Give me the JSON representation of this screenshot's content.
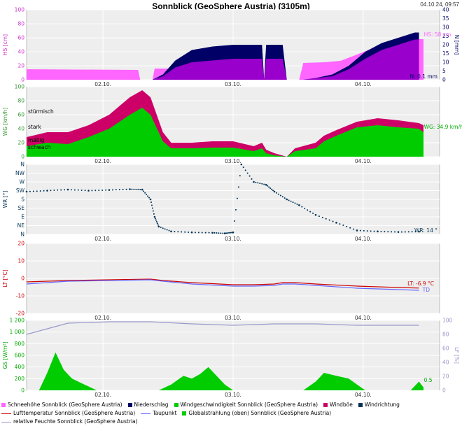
{
  "header": {
    "title": "Sonnblick (GeoSphere Austria) (3105m)",
    "timestamp": "04.10.24, 09:57"
  },
  "colors": {
    "snow": "#ff66ff",
    "precip": "#000066",
    "precip_fill": "#9900cc",
    "wind": "#00cc00",
    "gust": "#cc0066",
    "winddir": "#003355",
    "temp": "#cc0000",
    "dew": "#6666ff",
    "radiation": "#00cc00",
    "humidity": "#9999cc",
    "panel_bg": "#eeeeee",
    "grid": "#ffffff"
  },
  "x_axis": {
    "ticks": [
      {
        "label": "02.10.",
        "pos": 0.185
      },
      {
        "label": "03.10.",
        "pos": 0.5
      },
      {
        "label": "04.10.",
        "pos": 0.815
      }
    ]
  },
  "chart_data": [
    {
      "type": "area",
      "id": "snow",
      "ylabel": "HS [cm]",
      "ylabel_right": "N [mm]",
      "ylim": [
        0,
        100
      ],
      "ylim_right": [
        0,
        40
      ],
      "yticks": [
        "0",
        "20",
        "40",
        "60",
        "80",
        "100"
      ],
      "yticks_right": [
        "0",
        "5",
        "10",
        "15",
        "20",
        "25",
        "30",
        "35",
        "40"
      ],
      "series": [
        {
          "name": "Schneehöhe Sonnblick (GeoSphere Austria)",
          "kind": "snow",
          "points": [
            [
              0,
              15
            ],
            [
              0.27,
              14
            ],
            [
              0.275,
              0
            ],
            [
              0.305,
              0
            ],
            [
              0.31,
              16
            ],
            [
              0.57,
              16
            ],
            [
              0.575,
              0
            ],
            [
              0.58,
              16
            ],
            [
              0.62,
              17
            ],
            [
              0.63,
              0
            ],
            [
              0.66,
              0
            ],
            [
              0.67,
              24
            ],
            [
              0.72,
              25
            ],
            [
              0.76,
              27
            ],
            [
              0.8,
              36
            ],
            [
              0.85,
              48
            ],
            [
              0.9,
              57
            ],
            [
              0.95,
              58
            ],
            [
              0.961,
              58
            ]
          ]
        },
        {
          "name": "Niederschlag",
          "kind": "precip",
          "points": [
            [
              0.305,
              0
            ],
            [
              0.33,
              3
            ],
            [
              0.36,
              11
            ],
            [
              0.4,
              17
            ],
            [
              0.45,
              19
            ],
            [
              0.5,
              20
            ],
            [
              0.57,
              20
            ],
            [
              0.575,
              0
            ],
            [
              0.58,
              20
            ],
            [
              0.62,
              20
            ],
            [
              0.63,
              0
            ],
            [
              0.67,
              0
            ],
            [
              0.7,
              1
            ],
            [
              0.74,
              3
            ],
            [
              0.78,
              8
            ],
            [
              0.82,
              16
            ],
            [
              0.86,
              21
            ],
            [
              0.9,
              24
            ],
            [
              0.94,
              27
            ],
            [
              0.95,
              27
            ]
          ],
          "fill_points": [
            [
              0.305,
              0
            ],
            [
              0.33,
              2
            ],
            [
              0.36,
              7
            ],
            [
              0.4,
              10
            ],
            [
              0.45,
              11
            ],
            [
              0.5,
              12
            ],
            [
              0.57,
              12
            ],
            [
              0.575,
              0
            ],
            [
              0.58,
              12
            ],
            [
              0.62,
              12
            ],
            [
              0.63,
              0
            ],
            [
              0.67,
              0
            ],
            [
              0.7,
              1
            ],
            [
              0.74,
              2
            ],
            [
              0.78,
              6
            ],
            [
              0.82,
              12
            ],
            [
              0.86,
              17
            ],
            [
              0.9,
              20
            ],
            [
              0.94,
              23
            ],
            [
              0.95,
              23
            ]
          ]
        }
      ],
      "annotations": [
        "HS: 58 cm",
        "N: 0.1 mm"
      ]
    },
    {
      "type": "area",
      "id": "wind",
      "ylabel": "WG [km/h]",
      "ylim": [
        0,
        100
      ],
      "yticks": [
        "0",
        "20",
        "40",
        "60",
        "80",
        "100"
      ],
      "bands": [
        "schwach",
        "mäßig",
        "stark",
        "stürmisch"
      ],
      "band_levels": [
        10,
        20,
        39,
        61
      ],
      "series": [
        {
          "name": "Windböe",
          "kind": "gust",
          "points": [
            [
              0,
              28
            ],
            [
              0.05,
              35
            ],
            [
              0.1,
              35
            ],
            [
              0.15,
              45
            ],
            [
              0.2,
              60
            ],
            [
              0.25,
              85
            ],
            [
              0.28,
              95
            ],
            [
              0.3,
              85
            ],
            [
              0.33,
              35
            ],
            [
              0.35,
              20
            ],
            [
              0.4,
              20
            ],
            [
              0.45,
              22
            ],
            [
              0.5,
              22
            ],
            [
              0.55,
              15
            ],
            [
              0.57,
              20
            ],
            [
              0.58,
              10
            ],
            [
              0.6,
              5
            ],
            [
              0.63,
              0
            ],
            [
              0.65,
              12
            ],
            [
              0.7,
              20
            ],
            [
              0.72,
              30
            ],
            [
              0.75,
              38
            ],
            [
              0.8,
              50
            ],
            [
              0.85,
              55
            ],
            [
              0.9,
              52
            ],
            [
              0.95,
              48
            ],
            [
              0.961,
              45
            ]
          ]
        },
        {
          "name": "Windgeschwindigkeit Sonnblick (GeoSphere Austria)",
          "kind": "wind",
          "points": [
            [
              0,
              15
            ],
            [
              0.05,
              20
            ],
            [
              0.1,
              18
            ],
            [
              0.15,
              28
            ],
            [
              0.2,
              40
            ],
            [
              0.25,
              60
            ],
            [
              0.28,
              70
            ],
            [
              0.3,
              60
            ],
            [
              0.33,
              22
            ],
            [
              0.35,
              12
            ],
            [
              0.4,
              12
            ],
            [
              0.45,
              13
            ],
            [
              0.5,
              13
            ],
            [
              0.55,
              8
            ],
            [
              0.57,
              12
            ],
            [
              0.58,
              5
            ],
            [
              0.6,
              2
            ],
            [
              0.63,
              0
            ],
            [
              0.65,
              8
            ],
            [
              0.7,
              12
            ],
            [
              0.72,
              22
            ],
            [
              0.75,
              30
            ],
            [
              0.8,
              42
            ],
            [
              0.85,
              45
            ],
            [
              0.9,
              42
            ],
            [
              0.95,
              40
            ],
            [
              0.961,
              35
            ]
          ]
        }
      ],
      "annotations": [
        "WG: 34.9 km/h"
      ]
    },
    {
      "type": "scatter",
      "id": "winddir",
      "ylabel": "WR [°]",
      "ylim": [
        0,
        360
      ],
      "yticks": [
        "N",
        "NE",
        "E",
        "SE",
        "S",
        "SW",
        "W",
        "NW",
        "N"
      ],
      "series": [
        {
          "name": "Windrichtung",
          "kind": "winddir",
          "points": [
            [
              0,
              220
            ],
            [
              0.05,
              225
            ],
            [
              0.1,
              230
            ],
            [
              0.15,
              225
            ],
            [
              0.2,
              228
            ],
            [
              0.25,
              232
            ],
            [
              0.28,
              230
            ],
            [
              0.3,
              180
            ],
            [
              0.31,
              90
            ],
            [
              0.32,
              40
            ],
            [
              0.35,
              15
            ],
            [
              0.4,
              10
            ],
            [
              0.45,
              8
            ],
            [
              0.48,
              5
            ],
            [
              0.5,
              10
            ],
            [
              0.52,
              360
            ],
            [
              0.55,
              270
            ],
            [
              0.58,
              255
            ],
            [
              0.6,
              220
            ],
            [
              0.63,
              180
            ],
            [
              0.66,
              150
            ],
            [
              0.7,
              100
            ],
            [
              0.75,
              60
            ],
            [
              0.8,
              20
            ],
            [
              0.85,
              15
            ],
            [
              0.9,
              12
            ],
            [
              0.95,
              14
            ]
          ]
        }
      ],
      "annotations": [
        "WR: 14 °"
      ]
    },
    {
      "type": "line",
      "id": "temp",
      "ylabel": "LT [°C]",
      "ylim": [
        -25,
        25
      ],
      "yticks": [
        "-20",
        "-10",
        "0",
        "10",
        "20"
      ],
      "series": [
        {
          "name": "Lufttemperatur Sonnblick (GeoSphere Austria)",
          "kind": "temp",
          "points": [
            [
              0,
              -2.5
            ],
            [
              0.1,
              -1.5
            ],
            [
              0.2,
              -1
            ],
            [
              0.3,
              -0.5
            ],
            [
              0.33,
              -1.5
            ],
            [
              0.4,
              -3
            ],
            [
              0.5,
              -4.5
            ],
            [
              0.55,
              -4.5
            ],
            [
              0.6,
              -4
            ],
            [
              0.62,
              -3
            ],
            [
              0.65,
              -3
            ],
            [
              0.7,
              -4
            ],
            [
              0.8,
              -5.5
            ],
            [
              0.9,
              -6.5
            ],
            [
              0.95,
              -6.9
            ]
          ]
        },
        {
          "name": "Taupunkt",
          "kind": "dew",
          "points": [
            [
              0,
              -4
            ],
            [
              0.1,
              -2
            ],
            [
              0.2,
              -1.5
            ],
            [
              0.3,
              -1
            ],
            [
              0.33,
              -2
            ],
            [
              0.4,
              -4
            ],
            [
              0.5,
              -5.5
            ],
            [
              0.55,
              -5.5
            ],
            [
              0.6,
              -5
            ],
            [
              0.62,
              -4
            ],
            [
              0.65,
              -4
            ],
            [
              0.7,
              -5
            ],
            [
              0.8,
              -7
            ],
            [
              0.9,
              -8
            ],
            [
              0.95,
              -8.5
            ]
          ]
        }
      ],
      "annotations": [
        "LT: -6.9 °C",
        "TD"
      ]
    },
    {
      "type": "area",
      "id": "radiation",
      "ylabel": "GS [W/m²]",
      "ylabel_right": "LF [%]",
      "ylim": [
        0,
        1200
      ],
      "ylim_right": [
        0,
        100
      ],
      "yticks": [
        "0",
        "200",
        "400",
        "600",
        "800",
        "1 000",
        "1 200"
      ],
      "yticks_right": [
        "0",
        "20",
        "40",
        "60",
        "80",
        "100"
      ],
      "series": [
        {
          "name": "Globalstrahlung (oben) Sonnblick (GeoSphere Austria)",
          "kind": "radiation",
          "points": [
            [
              0.03,
              0
            ],
            [
              0.05,
              300
            ],
            [
              0.07,
              650
            ],
            [
              0.09,
              350
            ],
            [
              0.11,
              200
            ],
            [
              0.14,
              100
            ],
            [
              0.17,
              0
            ],
            [
              0.32,
              0
            ],
            [
              0.35,
              100
            ],
            [
              0.38,
              250
            ],
            [
              0.4,
              200
            ],
            [
              0.42,
              280
            ],
            [
              0.44,
              400
            ],
            [
              0.46,
              250
            ],
            [
              0.48,
              100
            ],
            [
              0.5,
              0
            ],
            [
              0.67,
              0
            ],
            [
              0.7,
              150
            ],
            [
              0.72,
              300
            ],
            [
              0.75,
              250
            ],
            [
              0.78,
              200
            ],
            [
              0.8,
              100
            ],
            [
              0.82,
              0
            ],
            [
              0.93,
              0
            ],
            [
              0.95,
              150
            ],
            [
              0.961,
              50
            ]
          ]
        },
        {
          "name": "relative Feuchte Sonnblick (GeoSphere Austria)",
          "kind": "humidity",
          "points": [
            [
              0,
              80
            ],
            [
              0.05,
              88
            ],
            [
              0.1,
              96
            ],
            [
              0.2,
              98
            ],
            [
              0.3,
              98
            ],
            [
              0.4,
              95
            ],
            [
              0.5,
              93
            ],
            [
              0.6,
              95
            ],
            [
              0.7,
              95
            ],
            [
              0.8,
              93
            ],
            [
              0.9,
              93
            ],
            [
              0.95,
              93
            ]
          ]
        }
      ],
      "annotations": [
        "0.5"
      ]
    }
  ],
  "legend": [
    {
      "label": "Schneehöhe Sonnblick (GeoSphere Austria)",
      "color": "#ff66ff",
      "kind": "box"
    },
    {
      "label": "Niederschlag",
      "color": "#000066",
      "kind": "box"
    },
    {
      "label": "Windgeschwindigkeit Sonnblick (GeoSphere Austria)",
      "color": "#00cc00",
      "kind": "box"
    },
    {
      "label": "Windböe",
      "color": "#cc0066",
      "kind": "box"
    },
    {
      "label": "Windrichtung",
      "color": "#003355",
      "kind": "box"
    },
    {
      "label": "Lufttemperatur Sonnblick (GeoSphere Austria)",
      "color": "#cc0000",
      "kind": "line"
    },
    {
      "label": "Taupunkt",
      "color": "#6666ff",
      "kind": "line"
    },
    {
      "label": "Globalstrahlung (oben) Sonnblick (GeoSphere Austria)",
      "color": "#00cc00",
      "kind": "box"
    },
    {
      "label": "relative Feuchte Sonnblick (GeoSphere Austria)",
      "color": "#9999cc",
      "kind": "line"
    }
  ]
}
